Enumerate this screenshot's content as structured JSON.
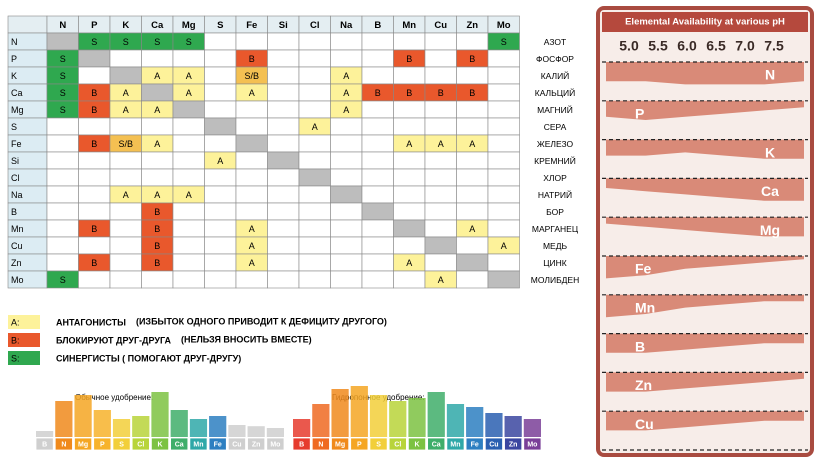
{
  "matrix": {
    "columns": [
      "N",
      "P",
      "K",
      "Ca",
      "Mg",
      "S",
      "Fe",
      "Si",
      "Cl",
      "Na",
      "B",
      "Mn",
      "Cu",
      "Zn",
      "Mo"
    ],
    "cell_colors": {
      "A": "#fdf29a",
      "B": "#e9582c",
      "S": "#2fa84f",
      "S/B": "#f4c052"
    },
    "gray_color": "#bdbdbd",
    "rows": [
      {
        "symbol": "N",
        "name": "АЗОТ",
        "gray": [
          0
        ],
        "cells": [
          null,
          "S",
          "S",
          "S",
          "S",
          null,
          null,
          null,
          null,
          null,
          null,
          null,
          null,
          null,
          "S"
        ]
      },
      {
        "symbol": "P",
        "name": "ФОСФОР",
        "gray": [
          1
        ],
        "cells": [
          "S",
          null,
          null,
          null,
          null,
          null,
          "B",
          null,
          null,
          null,
          null,
          "B",
          null,
          "B",
          null
        ]
      },
      {
        "symbol": "K",
        "name": "КАЛИЙ",
        "gray": [
          2
        ],
        "cells": [
          "S",
          null,
          null,
          "A",
          "A",
          null,
          "S/B",
          null,
          null,
          "A",
          null,
          null,
          null,
          null,
          null
        ]
      },
      {
        "symbol": "Ca",
        "name": "КАЛЬЦИЙ",
        "gray": [
          3
        ],
        "cells": [
          "S",
          "B",
          "A",
          null,
          "A",
          null,
          "A",
          null,
          null,
          "A",
          "B",
          "B",
          "B",
          "B",
          null
        ]
      },
      {
        "symbol": "Mg",
        "name": "МАГНИЙ",
        "gray": [
          4
        ],
        "cells": [
          "S",
          "B",
          "A",
          "A",
          null,
          null,
          null,
          null,
          null,
          "A",
          null,
          null,
          null,
          null,
          null
        ]
      },
      {
        "symbol": "S",
        "name": "СЕРА",
        "gray": [
          5
        ],
        "cells": [
          null,
          null,
          null,
          null,
          null,
          null,
          null,
          null,
          "A",
          null,
          null,
          null,
          null,
          null,
          null
        ]
      },
      {
        "symbol": "Fe",
        "name": "ЖЕЛЕЗО",
        "gray": [
          6
        ],
        "cells": [
          null,
          "B",
          "S/B",
          "A",
          null,
          null,
          null,
          null,
          null,
          null,
          null,
          "A",
          "A",
          "A",
          null
        ]
      },
      {
        "symbol": "Si",
        "name": "КРЕМНИЙ",
        "gray": [
          7
        ],
        "cells": [
          null,
          null,
          null,
          null,
          null,
          "A",
          null,
          null,
          null,
          null,
          null,
          null,
          null,
          null,
          null
        ]
      },
      {
        "symbol": "Cl",
        "name": "ХЛОР",
        "gray": [
          8
        ],
        "cells": [
          null,
          null,
          null,
          null,
          null,
          null,
          null,
          null,
          null,
          null,
          null,
          null,
          null,
          null,
          null
        ]
      },
      {
        "symbol": "Na",
        "name": "НАТРИЙ",
        "gray": [
          9
        ],
        "cells": [
          null,
          null,
          "A",
          "A",
          "A",
          null,
          null,
          null,
          null,
          null,
          null,
          null,
          null,
          null,
          null
        ]
      },
      {
        "symbol": "B",
        "name": "БОР",
        "gray": [
          10
        ],
        "cells": [
          null,
          null,
          null,
          "B",
          null,
          null,
          null,
          null,
          null,
          null,
          null,
          null,
          null,
          null,
          null
        ]
      },
      {
        "symbol": "Mn",
        "name": "МАРГАНЕЦ",
        "gray": [
          11
        ],
        "cells": [
          null,
          "B",
          null,
          "B",
          null,
          null,
          "A",
          null,
          null,
          null,
          null,
          null,
          null,
          "A",
          null
        ]
      },
      {
        "symbol": "Cu",
        "name": "МЕДЬ",
        "gray": [
          12
        ],
        "cells": [
          null,
          null,
          null,
          "B",
          null,
          null,
          "A",
          null,
          null,
          null,
          null,
          null,
          null,
          null,
          "A"
        ]
      },
      {
        "symbol": "Zn",
        "name": "ЦИНК",
        "gray": [
          13
        ],
        "cells": [
          null,
          "B",
          null,
          "B",
          null,
          null,
          "A",
          null,
          null,
          null,
          null,
          "A",
          null,
          null,
          null
        ]
      },
      {
        "symbol": "Mo",
        "name": "МОЛИБДЕН",
        "gray": [
          14
        ],
        "cells": [
          "S",
          null,
          null,
          null,
          null,
          null,
          null,
          null,
          null,
          null,
          null,
          null,
          "A",
          null,
          null
        ]
      }
    ]
  },
  "legend": [
    {
      "key": "A:",
      "title": "АНТАГОНИСТЫ",
      "note": "(ИЗБЫТОК ОДНОГО ПРИВОДИТ К ДЕФИЦИТУ ДРУГОГО)",
      "color": "#fdf29a"
    },
    {
      "key": "B:",
      "title": "БЛОКИРУЮТ ДРУГ-ДРУГА",
      "note": "(НЕЛЬЗЯ ВНОСИТЬ ВМЕСТЕ)",
      "color": "#e9582c"
    },
    {
      "key": "S:",
      "title": "СИНЕРГИСТЫ ( ПОМОГАЮТ ДРУГ-ДРУГУ)",
      "color": "#2fa84f"
    }
  ],
  "charts": [
    {
      "title": "Обычное удобрение:",
      "labels": [
        "B",
        "N",
        "Mg",
        "P",
        "S",
        "Cl",
        "K",
        "Ca",
        "Mn",
        "Fe",
        "Cu",
        "Zn",
        "Mo"
      ],
      "values": [
        10,
        60,
        70,
        45,
        30,
        35,
        75,
        45,
        30,
        35,
        20,
        18,
        15
      ],
      "colors": [
        "#cfcfcf",
        "#f08a1c",
        "#f5a623",
        "#f7b32b",
        "#f2cf3a",
        "#b8d43a",
        "#7cc242",
        "#3fae6a",
        "#2fa8a8",
        "#2d7fc1",
        "#cfcfcf",
        "#cfcfcf",
        "#cfcfcf"
      ]
    },
    {
      "title": "Гидропонное удобрение:",
      "labels": [
        "B",
        "N",
        "Mg",
        "P",
        "S",
        "Cl",
        "K",
        "Ca",
        "Mn",
        "Fe",
        "Cu",
        "Zn",
        "Mo"
      ],
      "values": [
        30,
        55,
        80,
        85,
        70,
        60,
        65,
        75,
        55,
        50,
        40,
        35,
        30
      ],
      "colors": [
        "#e63b2e",
        "#ef6a22",
        "#f08a1c",
        "#f5a623",
        "#f2cf3a",
        "#b8d43a",
        "#7cc242",
        "#3fae6a",
        "#2fa8a8",
        "#2d7fc1",
        "#2a5fb0",
        "#3b46a0",
        "#7a3f98"
      ]
    }
  ],
  "ph_panel": {
    "title": "Elemental Availability at various pH",
    "ph_labels": [
      "5.0",
      "5.5",
      "6.0",
      "6.5",
      "7.0",
      "7.5"
    ],
    "color": "#d98a78",
    "bands": [
      {
        "label": "N",
        "values": [
          6,
          6,
          7,
          7,
          7,
          6
        ]
      },
      {
        "label": "P",
        "values": [
          5,
          6,
          5,
          4,
          3,
          2
        ]
      },
      {
        "label": "K",
        "values": [
          5,
          5,
          4,
          5,
          6,
          6
        ]
      },
      {
        "label": "Ca",
        "values": [
          3,
          4,
          5,
          6,
          7,
          7
        ]
      },
      {
        "label": "Mg",
        "values": [
          2,
          3,
          4,
          5,
          6,
          6
        ]
      },
      {
        "label": "Fe",
        "values": [
          7,
          6,
          4,
          3,
          2,
          1
        ]
      },
      {
        "label": "Mn",
        "values": [
          7,
          6,
          4,
          3,
          2,
          2
        ]
      },
      {
        "label": "B",
        "values": [
          6,
          6,
          5,
          4,
          3,
          3
        ]
      },
      {
        "label": "Zn",
        "values": [
          6,
          6,
          5,
          4,
          3,
          2
        ]
      },
      {
        "label": "Cu",
        "values": [
          6,
          6,
          5,
          4,
          3,
          3
        ]
      }
    ]
  }
}
